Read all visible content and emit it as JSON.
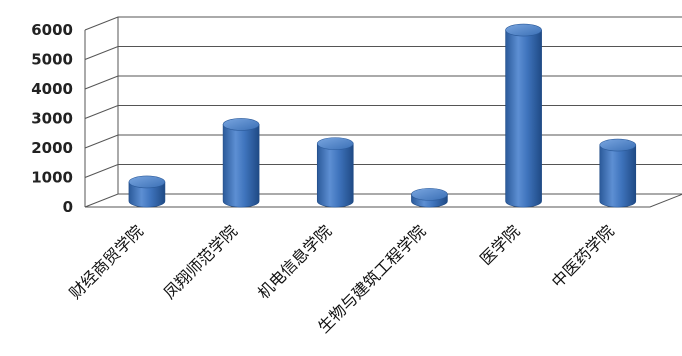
{
  "chart_data": {
    "type": "bar",
    "categories": [
      "财经商贸学院",
      "凤翔师范学院",
      "机电信息学院",
      "生物与建筑工程学院",
      "医学院",
      "中医药学院"
    ],
    "values": [
      650,
      2600,
      1950,
      230,
      5800,
      1900
    ],
    "ylim": [
      0,
      6000
    ],
    "yticks": [
      0,
      1000,
      2000,
      3000,
      4000,
      5000,
      6000
    ],
    "grid": true,
    "legend": "none",
    "colors": {
      "bar": "#3a6fb5",
      "bar_dark": "#1f4a85",
      "bar_light": "#7aa6e0",
      "grid": "#555555"
    }
  }
}
